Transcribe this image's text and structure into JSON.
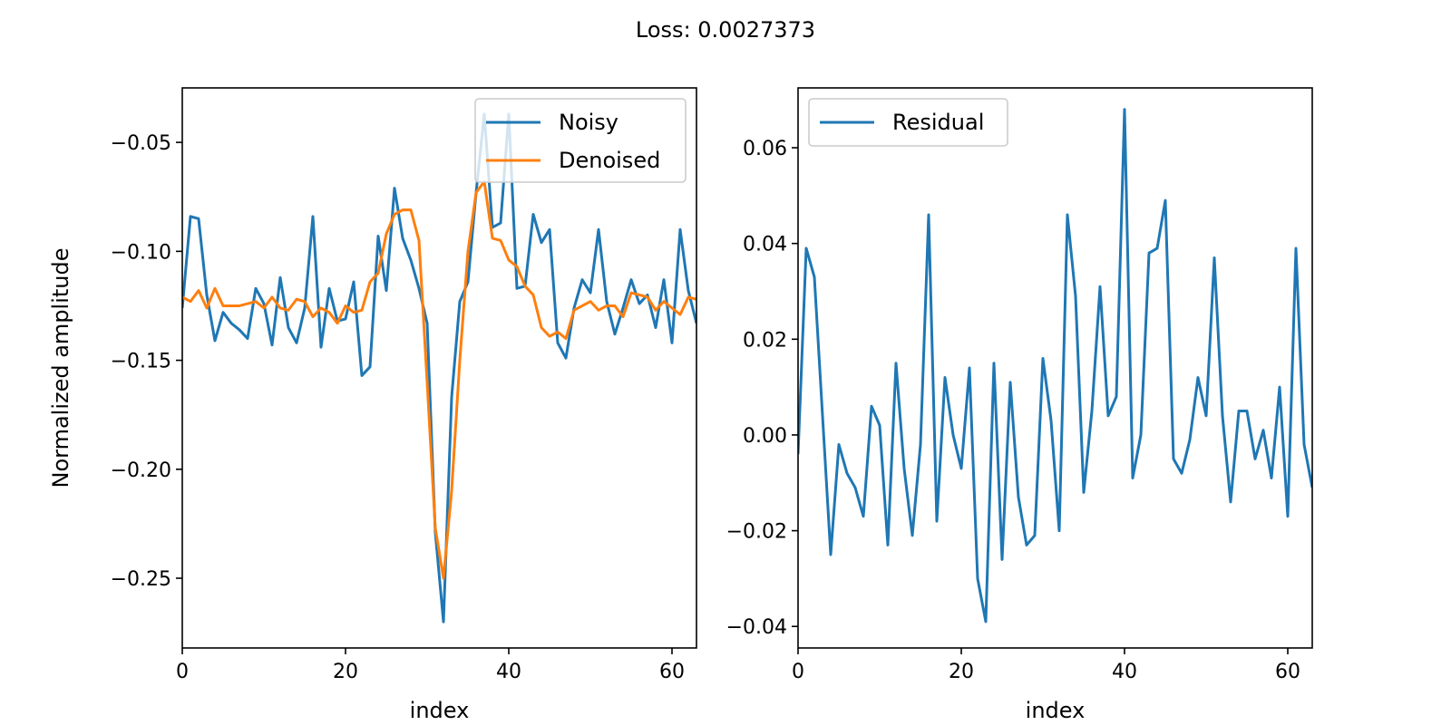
{
  "figure": {
    "suptitle": "Loss: 0.0027373",
    "colors": {
      "blue": "#1f77b4",
      "orange": "#ff7f0e"
    }
  },
  "chart_data": [
    {
      "type": "line",
      "title": "",
      "xlabel": "index",
      "ylabel": "Normalized amplitude",
      "xlim": [
        0,
        63
      ],
      "ylim": [
        -0.282,
        -0.025
      ],
      "xticks": [
        0,
        20,
        40,
        60
      ],
      "xtick_labels": [
        "0",
        "20",
        "40",
        "60"
      ],
      "yticks": [
        -0.25,
        -0.2,
        -0.15,
        -0.1,
        -0.05
      ],
      "ytick_labels": [
        "−0.25",
        "−0.20",
        "−0.15",
        "−0.10",
        "−0.05"
      ],
      "grid": false,
      "legend": "top-right",
      "x": [
        0,
        1,
        2,
        3,
        4,
        5,
        6,
        7,
        8,
        9,
        10,
        11,
        12,
        13,
        14,
        15,
        16,
        17,
        18,
        19,
        20,
        21,
        22,
        23,
        24,
        25,
        26,
        27,
        28,
        29,
        30,
        31,
        32,
        33,
        34,
        35,
        36,
        37,
        38,
        39,
        40,
        41,
        42,
        43,
        44,
        45,
        46,
        47,
        48,
        49,
        50,
        51,
        52,
        53,
        54,
        55,
        56,
        57,
        58,
        59,
        60,
        61,
        62,
        63
      ],
      "series": [
        {
          "name": "Noisy",
          "color": "#1f77b4",
          "values": [
            -0.126,
            -0.084,
            -0.085,
            -0.12,
            -0.141,
            -0.128,
            -0.133,
            -0.136,
            -0.14,
            -0.117,
            -0.124,
            -0.143,
            -0.112,
            -0.135,
            -0.142,
            -0.126,
            -0.084,
            -0.144,
            -0.117,
            -0.132,
            -0.131,
            -0.114,
            -0.157,
            -0.153,
            -0.093,
            -0.118,
            -0.071,
            -0.094,
            -0.104,
            -0.117,
            -0.133,
            -0.229,
            -0.27,
            -0.167,
            -0.123,
            -0.114,
            -0.073,
            -0.037,
            -0.089,
            -0.087,
            -0.037,
            -0.117,
            -0.116,
            -0.083,
            -0.096,
            -0.09,
            -0.142,
            -0.149,
            -0.126,
            -0.113,
            -0.119,
            -0.09,
            -0.123,
            -0.138,
            -0.126,
            -0.113,
            -0.124,
            -0.12,
            -0.135,
            -0.113,
            -0.142,
            -0.09,
            -0.118,
            -0.133
          ]
        },
        {
          "name": "Denoised",
          "color": "#ff7f0e",
          "values": [
            -0.121,
            -0.123,
            -0.118,
            -0.126,
            -0.117,
            -0.125,
            -0.125,
            -0.125,
            -0.124,
            -0.123,
            -0.126,
            -0.121,
            -0.126,
            -0.127,
            -0.122,
            -0.123,
            -0.13,
            -0.126,
            -0.128,
            -0.133,
            -0.125,
            -0.128,
            -0.127,
            -0.114,
            -0.11,
            -0.092,
            -0.083,
            -0.081,
            -0.081,
            -0.095,
            -0.16,
            -0.227,
            -0.25,
            -0.21,
            -0.15,
            -0.1,
            -0.073,
            -0.068,
            -0.094,
            -0.095,
            -0.104,
            -0.107,
            -0.116,
            -0.12,
            -0.135,
            -0.139,
            -0.137,
            -0.14,
            -0.127,
            -0.125,
            -0.123,
            -0.127,
            -0.125,
            -0.125,
            -0.13,
            -0.119,
            -0.12,
            -0.121,
            -0.127,
            -0.123,
            -0.126,
            -0.129,
            -0.121,
            -0.122
          ]
        }
      ]
    },
    {
      "type": "line",
      "title": "",
      "xlabel": "index",
      "ylabel": "",
      "xlim": [
        0,
        63
      ],
      "ylim": [
        -0.0445,
        0.0725
      ],
      "xticks": [
        0,
        20,
        40,
        60
      ],
      "xtick_labels": [
        "0",
        "20",
        "40",
        "60"
      ],
      "yticks": [
        -0.04,
        -0.02,
        0,
        0.02,
        0.04,
        0.06
      ],
      "ytick_labels": [
        "−0.04",
        "−0.02",
        "0.00",
        "0.02",
        "0.04",
        "0.06"
      ],
      "grid": false,
      "legend": "top-left",
      "x": [
        0,
        1,
        2,
        3,
        4,
        5,
        6,
        7,
        8,
        9,
        10,
        11,
        12,
        13,
        14,
        15,
        16,
        17,
        18,
        19,
        20,
        21,
        22,
        23,
        24,
        25,
        26,
        27,
        28,
        29,
        30,
        31,
        32,
        33,
        34,
        35,
        36,
        37,
        38,
        39,
        40,
        41,
        42,
        43,
        44,
        45,
        46,
        47,
        48,
        49,
        50,
        51,
        52,
        53,
        54,
        55,
        56,
        57,
        58,
        59,
        60,
        61,
        62,
        63
      ],
      "series": [
        {
          "name": "Residual",
          "color": "#1f77b4",
          "values": [
            -0.004,
            0.039,
            0.033,
            0.004,
            -0.025,
            -0.002,
            -0.008,
            -0.011,
            -0.017,
            0.006,
            0.002,
            -0.023,
            0.015,
            -0.007,
            -0.021,
            -0.002,
            0.046,
            -0.018,
            0.012,
            -0.0,
            -0.007,
            0.014,
            -0.03,
            -0.039,
            0.015,
            -0.026,
            0.011,
            -0.013,
            -0.023,
            -0.021,
            0.016,
            0.003,
            -0.02,
            0.046,
            0.029,
            -0.012,
            0.005,
            0.031,
            0.004,
            0.008,
            0.068,
            -0.009,
            0.0,
            0.038,
            0.039,
            0.049,
            -0.005,
            -0.008,
            -0.001,
            0.012,
            0.004,
            0.037,
            0.004,
            -0.014,
            0.005,
            0.005,
            -0.005,
            0.001,
            -0.009,
            0.01,
            -0.017,
            0.039,
            -0.002,
            -0.011
          ]
        }
      ]
    }
  ]
}
